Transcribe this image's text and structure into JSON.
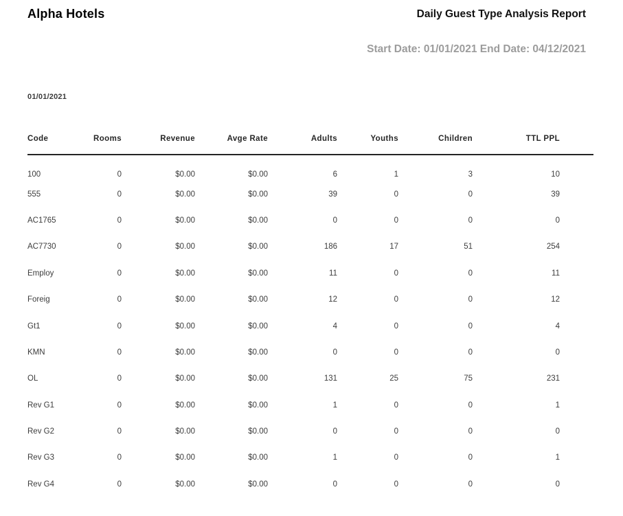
{
  "header": {
    "company": "Alpha Hotels",
    "report_title": "Daily Guest Type Analysis Report",
    "start_date_label": "Start Date:",
    "start_date": "01/01/2021",
    "end_date_label": "End Date:",
    "end_date": "04/12/2021"
  },
  "section": {
    "date": "01/01/2021"
  },
  "table": {
    "columns": [
      "Code",
      "Rooms",
      "Revenue",
      "Avge Rate",
      "Adults",
      "Youths",
      "Children",
      "TTL PPL"
    ],
    "rows": [
      [
        "100",
        "0",
        "$0.00",
        "$0.00",
        "6",
        "1",
        "3",
        "10"
      ],
      [
        "555",
        "0",
        "$0.00",
        "$0.00",
        "39",
        "0",
        "0",
        "39"
      ],
      [
        "AC1765",
        "0",
        "$0.00",
        "$0.00",
        "0",
        "0",
        "0",
        "0"
      ],
      [
        "AC7730",
        "0",
        "$0.00",
        "$0.00",
        "186",
        "17",
        "51",
        "254"
      ],
      [
        "Employ",
        "0",
        "$0.00",
        "$0.00",
        "11",
        "0",
        "0",
        "11"
      ],
      [
        "Foreig",
        "0",
        "$0.00",
        "$0.00",
        "12",
        "0",
        "0",
        "12"
      ],
      [
        "Gt1",
        "0",
        "$0.00",
        "$0.00",
        "4",
        "0",
        "0",
        "4"
      ],
      [
        "KMN",
        "0",
        "$0.00",
        "$0.00",
        "0",
        "0",
        "0",
        "0"
      ],
      [
        "OL",
        "0",
        "$0.00",
        "$0.00",
        "131",
        "25",
        "75",
        "231"
      ],
      [
        "Rev G1",
        "0",
        "$0.00",
        "$0.00",
        "1",
        "0",
        "0",
        "1"
      ],
      [
        "Rev G2",
        "0",
        "$0.00",
        "$0.00",
        "0",
        "0",
        "0",
        "0"
      ],
      [
        "Rev G3",
        "0",
        "$0.00",
        "$0.00",
        "1",
        "0",
        "0",
        "1"
      ],
      [
        "Rev G4",
        "0",
        "$0.00",
        "$0.00",
        "0",
        "0",
        "0",
        "0"
      ]
    ]
  },
  "colors": {
    "text_primary": "#000000",
    "text_secondary": "#3c3c3c",
    "text_muted": "#9c9c9c",
    "rule_line": "#242424",
    "background": "#ffffff"
  }
}
